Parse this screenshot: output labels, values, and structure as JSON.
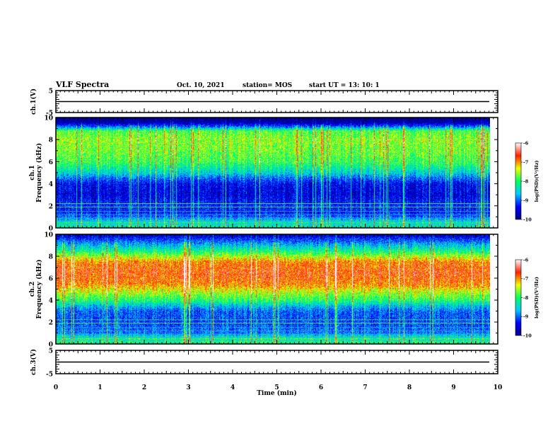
{
  "header": {
    "title": "VLF Spectra",
    "date": "Oct. 10, 2021",
    "station": "station= MOS",
    "start": "start UT =  13: 10: 1"
  },
  "chart_data": [
    {
      "type": "line",
      "name": "ch1-waveform",
      "ylabel": "ch.1(V)",
      "ylim": [
        -5,
        5
      ],
      "yticks": [
        "5",
        "-5"
      ],
      "xlim": [
        0,
        10
      ],
      "baseline": 0
    },
    {
      "type": "heatmap",
      "name": "ch1-spectrogram",
      "ylabel": "ch.1\nFrequency (kHz)",
      "ylim": [
        0,
        10
      ],
      "yticks": [
        "0",
        "2",
        "4",
        "6",
        "8",
        "10"
      ],
      "xlim": [
        0,
        10
      ],
      "data_end_min": 9.83,
      "profile_khz_log": [
        [
          0,
          -8.4
        ],
        [
          0.5,
          -8.2
        ],
        [
          1,
          -9.0
        ],
        [
          1.5,
          -9.3
        ],
        [
          2,
          -9.2
        ],
        [
          3,
          -9.5
        ],
        [
          4,
          -9.4
        ],
        [
          4.5,
          -9.0
        ],
        [
          5,
          -8.5
        ],
        [
          6,
          -7.9
        ],
        [
          7,
          -7.7
        ],
        [
          8,
          -7.6
        ],
        [
          8.8,
          -7.8
        ],
        [
          9.2,
          -9.0
        ],
        [
          9.6,
          -9.8
        ],
        [
          10,
          -10
        ]
      ],
      "colorbar": {
        "label": "log(PSD)(V²/Hz)",
        "range": [
          -10,
          -6
        ],
        "ticks": [
          "-6",
          "-7",
          "-8",
          "-9",
          "-10"
        ]
      }
    },
    {
      "type": "heatmap",
      "name": "ch2-spectrogram",
      "ylabel": "ch.2\nFrequency (kHz)",
      "ylim": [
        0,
        10
      ],
      "yticks": [
        "0",
        "2",
        "4",
        "6",
        "8",
        "10"
      ],
      "xlim": [
        0,
        10
      ],
      "data_end_min": 9.83,
      "profile_khz_log": [
        [
          0,
          -8.2
        ],
        [
          0.5,
          -8.0
        ],
        [
          1,
          -8.9
        ],
        [
          2,
          -9.1
        ],
        [
          3,
          -9.0
        ],
        [
          3.5,
          -8.6
        ],
        [
          4,
          -8.0
        ],
        [
          5,
          -7.3
        ],
        [
          5.5,
          -6.9
        ],
        [
          6.5,
          -6.7
        ],
        [
          7.5,
          -6.9
        ],
        [
          8,
          -7.5
        ],
        [
          8.5,
          -8.1
        ],
        [
          9,
          -8.6
        ],
        [
          9.5,
          -9.1
        ],
        [
          10,
          -9.6
        ]
      ],
      "colorbar": {
        "label": "log(PSD)(V²/Hz)",
        "range": [
          -10,
          -6
        ],
        "ticks": [
          "-6",
          "-7",
          "-8",
          "-9",
          "-10"
        ]
      }
    },
    {
      "type": "line",
      "name": "ch3-waveform",
      "ylabel": "ch.3(V)",
      "ylim": [
        -5,
        5
      ],
      "yticks": [
        "5",
        "-5"
      ],
      "xlim": [
        0,
        10
      ],
      "baseline": 0
    }
  ],
  "xaxis": {
    "label": "Time (min)",
    "ticks": [
      "0",
      "1",
      "2",
      "3",
      "4",
      "5",
      "6",
      "7",
      "8",
      "9",
      "10"
    ]
  },
  "colors": {
    "scale": [
      "#000080",
      "#0000ff",
      "#00c8ff",
      "#00ff60",
      "#f0ff00",
      "#ff2000",
      "#ffffff"
    ]
  }
}
